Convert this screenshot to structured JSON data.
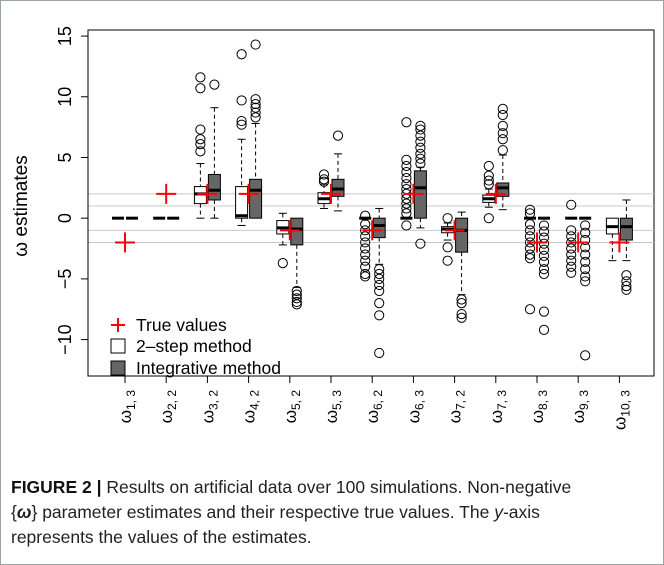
{
  "chart_data": {
    "type": "boxplot",
    "ylabel": "ω estimates",
    "ylim": [
      -13,
      15.5
    ],
    "yticks": [
      -10,
      -5,
      0,
      5,
      10,
      15
    ],
    "reference_lines": [
      -2,
      -1,
      1,
      2
    ],
    "grid": false,
    "legend_position": "bottom-left",
    "colors": {
      "true_value": "#ff0000",
      "two_step": "#ffffff",
      "integrative": "#666666"
    },
    "legend": [
      {
        "marker": "cross",
        "label": "True values"
      },
      {
        "marker": "white-box",
        "label": "2–step method"
      },
      {
        "marker": "gray-box",
        "label": "Integrative method"
      }
    ],
    "categories": [
      {
        "base": "ω",
        "sub": "1, 3"
      },
      {
        "base": "ω",
        "sub": "2, 2"
      },
      {
        "base": "ω",
        "sub": "3, 2"
      },
      {
        "base": "ω",
        "sub": "4, 2"
      },
      {
        "base": "ω",
        "sub": "5, 2"
      },
      {
        "base": "ω",
        "sub": "5, 3"
      },
      {
        "base": "ω",
        "sub": "6, 2"
      },
      {
        "base": "ω",
        "sub": "6, 3"
      },
      {
        "base": "ω",
        "sub": "7, 2"
      },
      {
        "base": "ω",
        "sub": "7, 3"
      },
      {
        "base": "ω",
        "sub": "8, 3"
      },
      {
        "base": "ω",
        "sub": "9, 3"
      },
      {
        "base": "ω",
        "sub": "10, 3"
      }
    ],
    "true_values": [
      -2,
      2,
      2,
      2,
      -1,
      2,
      -1,
      2,
      -1,
      2,
      -2,
      -2,
      -2
    ],
    "series": [
      {
        "name": "2–step method",
        "boxes": [
          {
            "whisker_low": 0,
            "q1": 0,
            "median": 0,
            "q3": 0,
            "whisker_high": 0,
            "outliers": []
          },
          {
            "whisker_low": 0,
            "q1": 0,
            "median": 0,
            "q3": 0,
            "whisker_high": 0,
            "outliers": []
          },
          {
            "whisker_low": 0,
            "q1": 1.2,
            "median": 2.0,
            "q3": 2.6,
            "whisker_high": 4.5,
            "outliers": [
              5.5,
              6.1,
              6.5,
              7.3,
              10.7,
              11.6
            ]
          },
          {
            "whisker_low": -0.6,
            "q1": 0,
            "median": 0.2,
            "q3": 2.6,
            "whisker_high": 6.5,
            "outliers": [
              7.7,
              8.0,
              9.7,
              13.5
            ]
          },
          {
            "whisker_low": -2.2,
            "q1": -1.3,
            "median": -0.8,
            "q3": -0.2,
            "whisker_high": 0.4,
            "outliers": [
              -3.7
            ]
          },
          {
            "whisker_low": 0.8,
            "q1": 1.2,
            "median": 1.6,
            "q3": 2.1,
            "whisker_high": 2.8,
            "outliers": [
              3.0,
              3.2,
              3.6
            ]
          },
          {
            "whisker_low": 0,
            "q1": 0,
            "median": 0,
            "q3": 0,
            "whisker_high": 0,
            "outliers": [
              -0.5,
              -1.0,
              -1.5,
              -2.0,
              -2.5,
              -3.0,
              -3.5,
              -4.0,
              -4.6,
              -4.8,
              0.2
            ]
          },
          {
            "whisker_low": 0,
            "q1": 0,
            "median": 0,
            "q3": 0,
            "whisker_high": 0,
            "outliers": [
              -0.6,
              0.4,
              0.8,
              1.2,
              1.6,
              2.0,
              2.4,
              2.8,
              3.3,
              3.8,
              4.3,
              4.8,
              7.9
            ]
          },
          {
            "whisker_low": -1.8,
            "q1": -1.2,
            "median": -0.9,
            "q3": -0.7,
            "whisker_high": -0.4,
            "outliers": [
              -2.4,
              -3.5,
              0.0
            ]
          },
          {
            "whisker_low": 0.9,
            "q1": 1.3,
            "median": 1.6,
            "q3": 1.9,
            "whisker_high": 2.4,
            "outliers": [
              0.0,
              2.8,
              3.1,
              3.5,
              4.3
            ]
          },
          {
            "whisker_low": 0,
            "q1": 0,
            "median": 0,
            "q3": 0,
            "whisker_high": 0,
            "outliers": [
              -0.5,
              -1.0,
              -1.5,
              -2.0,
              -2.5,
              -3.0,
              -3.3,
              0.4,
              0.7,
              -7.5
            ]
          },
          {
            "whisker_low": 0,
            "q1": 0,
            "median": 0,
            "q3": 0,
            "whisker_high": 0,
            "outliers": [
              -1.0,
              -1.5,
              -2.0,
              -2.5,
              -3.0,
              -3.5,
              -4.0,
              -4.5,
              1.1
            ]
          },
          {
            "whisker_low": -3.5,
            "q1": -1.3,
            "median": -0.7,
            "q3": 0,
            "whisker_high": 0,
            "outliers": []
          }
        ]
      },
      {
        "name": "Integrative method",
        "boxes": [
          {
            "whisker_low": 0,
            "q1": 0,
            "median": 0,
            "q3": 0,
            "whisker_high": 0,
            "outliers": []
          },
          {
            "whisker_low": 0,
            "q1": 0,
            "median": 0,
            "q3": 0,
            "whisker_high": 0,
            "outliers": []
          },
          {
            "whisker_low": 0,
            "q1": 1.5,
            "median": 2.3,
            "q3": 3.6,
            "whisker_high": 9.1,
            "outliers": [
              11.0
            ]
          },
          {
            "whisker_low": 0,
            "q1": 0,
            "median": 2.3,
            "q3": 3.2,
            "whisker_high": 7.8,
            "outliers": [
              8.3,
              8.7,
              9.1,
              9.4,
              9.8,
              14.3
            ]
          },
          {
            "whisker_low": -5.7,
            "q1": -2.2,
            "median": -0.9,
            "q3": 0,
            "whisker_high": 0,
            "outliers": [
              -6.0,
              -6.3,
              -6.6,
              -6.9,
              -7.1
            ]
          },
          {
            "whisker_low": 0.6,
            "q1": 1.8,
            "median": 2.4,
            "q3": 3.2,
            "whisker_high": 5.3,
            "outliers": [
              6.8
            ]
          },
          {
            "whisker_low": -3.8,
            "q1": -1.6,
            "median": -0.6,
            "q3": 0,
            "whisker_high": 0.8,
            "outliers": [
              -4.2,
              -4.6,
              -5.0,
              -5.5,
              -6.0,
              -7.0,
              -8.0,
              -11.1
            ]
          },
          {
            "whisker_low": -0.8,
            "q1": 0,
            "median": 2.5,
            "q3": 3.9,
            "whisker_high": 4.2,
            "outliers": [
              -2.1,
              4.5,
              4.9,
              5.3,
              5.8,
              6.3,
              6.8,
              7.3,
              7.6
            ]
          },
          {
            "whisker_low": -6.3,
            "q1": -2.8,
            "median": -1.0,
            "q3": 0,
            "whisker_high": 0.5,
            "outliers": [
              -6.7,
              -7.0,
              -7.9,
              -8.2
            ]
          },
          {
            "whisker_low": 0.7,
            "q1": 1.8,
            "median": 2.5,
            "q3": 2.9,
            "whisker_high": 5.2,
            "outliers": [
              5.6,
              6.5,
              7.0,
              7.6,
              8.5,
              9.0
            ]
          },
          {
            "whisker_low": 0,
            "q1": 0,
            "median": 0,
            "q3": 0,
            "whisker_high": 0,
            "outliers": [
              -0.6,
              -1.1,
              -1.6,
              -2.1,
              -2.6,
              -3.1,
              -3.6,
              -4.2,
              -4.6,
              -7.7,
              -9.2
            ]
          },
          {
            "whisker_low": 0,
            "q1": 0,
            "median": 0,
            "q3": 0,
            "whisker_high": 0,
            "outliers": [
              -0.6,
              -1.2,
              -1.8,
              -2.4,
              -3.0,
              -3.6,
              -4.2,
              -4.8,
              -5.2,
              -11.3
            ]
          },
          {
            "whisker_low": -3.5,
            "q1": -1.8,
            "median": -0.7,
            "q3": 0,
            "whisker_high": 1.5,
            "outliers": [
              -4.7,
              -5.2,
              -5.6,
              -5.9
            ]
          }
        ]
      }
    ]
  },
  "caption": {
    "label": "FIGURE 2 |",
    "line1": " Results on artificial data over 100 simulations. Non-negative",
    "set_open": "{",
    "set_symbol": "ω",
    "set_close": "}",
    "line2_rest": " parameter estimates and their respective true values. The ",
    "axis_name": "y",
    "line2_end": "-axis",
    "line3": "represents the values of the estimates."
  }
}
